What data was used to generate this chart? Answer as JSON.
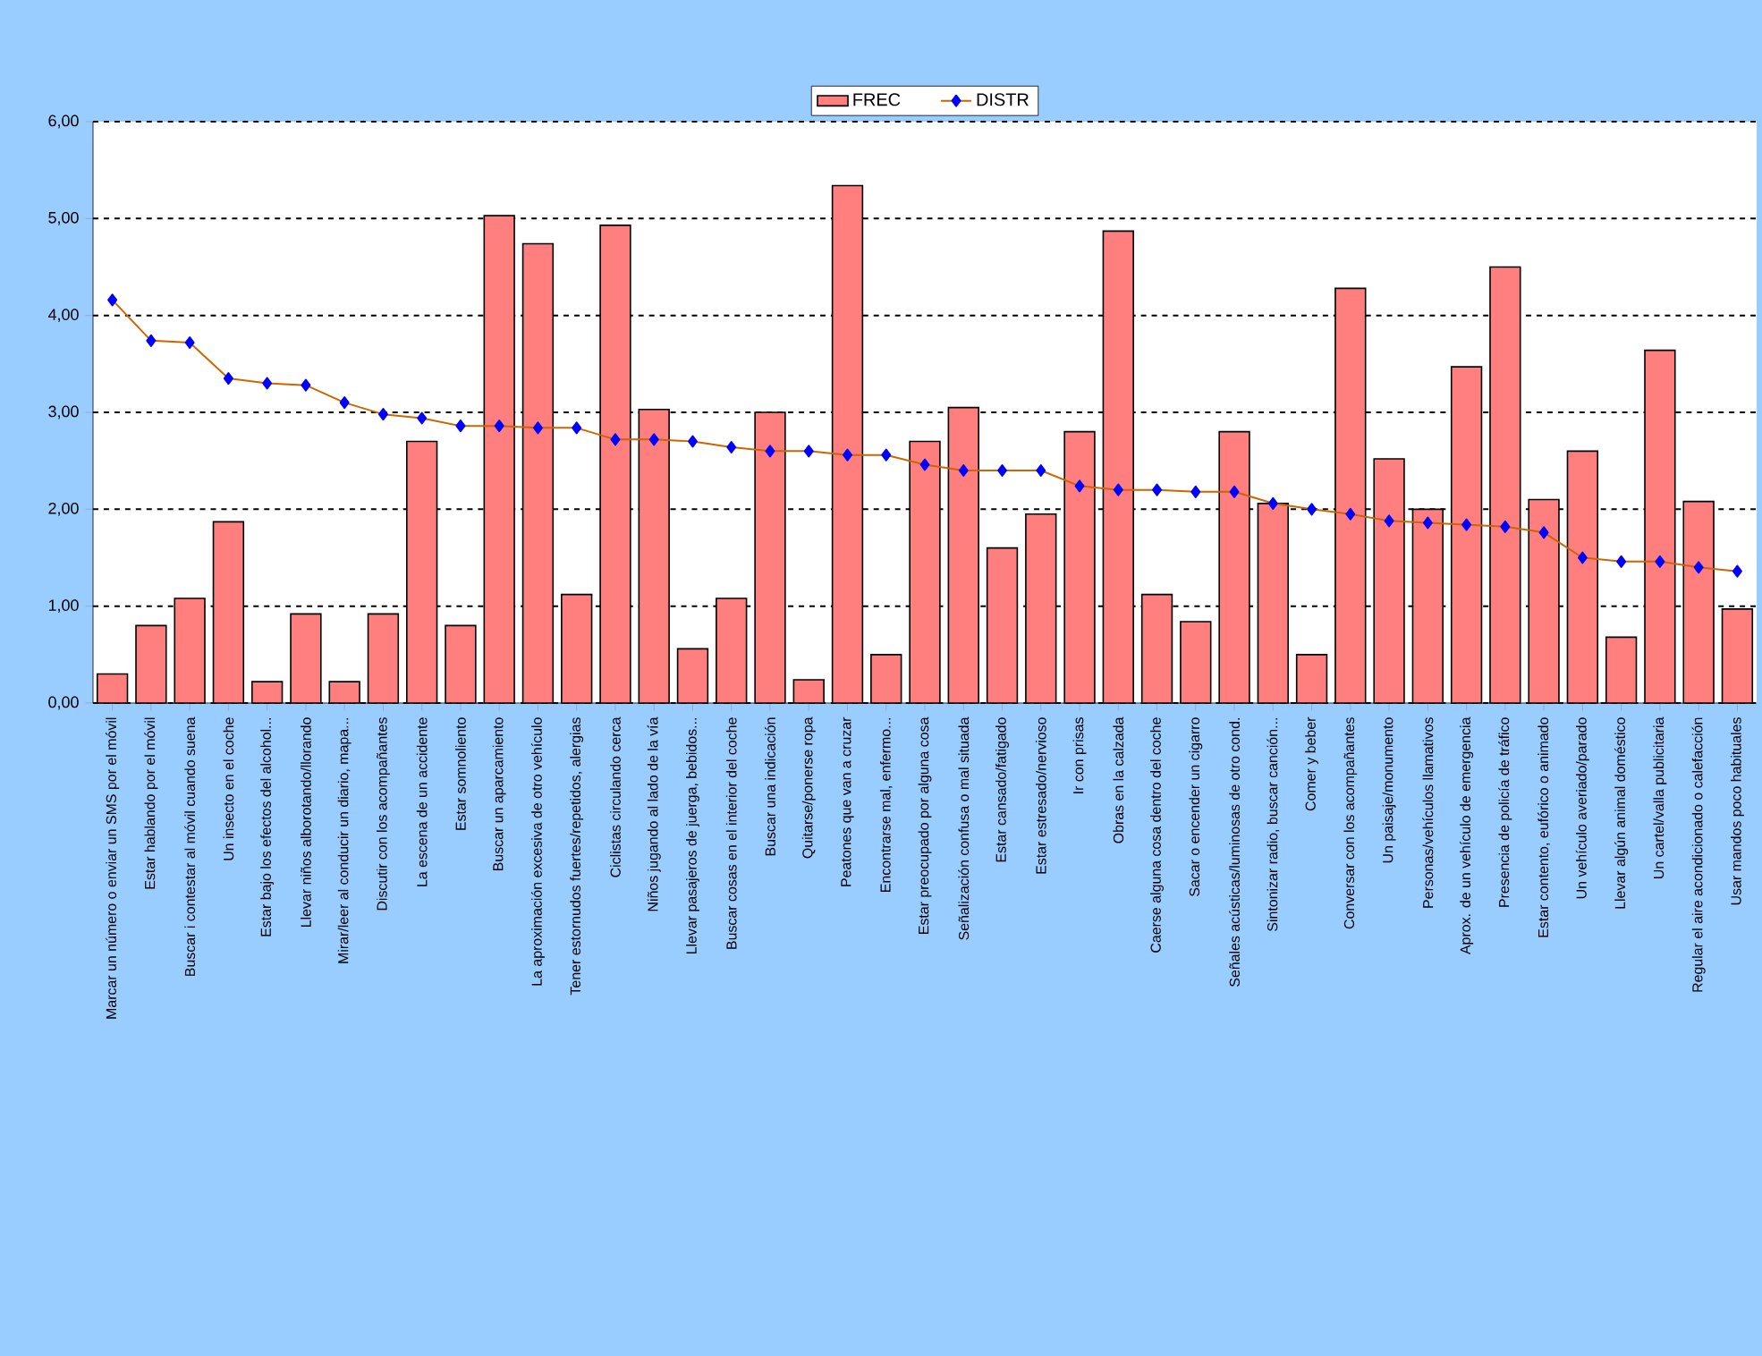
{
  "chart_data": {
    "type": "bar",
    "categories": [
      "Marcar un número o enviar un SMS por el móvil",
      "Estar hablando por el móvil",
      "Buscar i contestar al móvil cuando suena",
      "Un insecto en el coche",
      "Estar bajo los efectos del alcohol...",
      "Llevar niños alborotando/llorando",
      "Mirar/leer al conducir un diario, mapa...",
      "Discutir con los acompañantes",
      "La escena de un accidente",
      "Estar somnoliento",
      "Buscar un aparcamiento",
      "La aproximación excesiva de otro vehículo",
      "Tener estornudos fuertes/repetidos, alergias",
      "Ciclistas circulando cerca",
      "Niños jugando al lado de la vía",
      "Llevar pasajeros de juerga, bebidos...",
      "Buscar cosas en el interior del coche",
      "Buscar una indicación",
      "Quitarse/ponerse ropa",
      "Peatones que van a cruzar",
      "Encontrarse mal, enfermo...",
      "Estar preocupado por alguna cosa",
      "Señalización confusa o mal situada",
      "Estar cansado/fatigado",
      "Estar estresado/nervioso",
      "Ir con prisas",
      "Obras en la calzada",
      "Caerse alguna cosa dentro del coche",
      "Sacar o encender un cigarro",
      "Señales acústicas/luminosas de otro cond.",
      "Sintonizar radio, buscar canción...",
      "Comer y beber",
      "Conversar con los acompañantes",
      "Un paisaje/monumento",
      "Personas/vehículos llamativos",
      "Aprox. de un vehículo de emergencia",
      "Presencia de policía de tráfico",
      "Estar contento, eufórico o animado",
      "Un vehículo averiado/parado",
      "Llevar algún animal doméstico",
      "Un cartel/valla publicitaria",
      "Regular el aire acondicionado o calefacción",
      "Usar mandos poco habituales"
    ],
    "series": [
      {
        "name": "FREC",
        "color": "#ff7f7f",
        "values": [
          0.3,
          0.8,
          1.08,
          1.87,
          0.22,
          0.92,
          0.22,
          0.92,
          2.7,
          0.8,
          5.03,
          4.74,
          1.12,
          4.93,
          3.03,
          0.56,
          1.08,
          3.0,
          0.24,
          5.34,
          0.5,
          2.7,
          3.05,
          1.6,
          1.95,
          2.8,
          4.87,
          1.12,
          0.84,
          2.8,
          2.06,
          0.5,
          4.28,
          2.52,
          2.0,
          3.47,
          4.5,
          2.1,
          2.6,
          0.68,
          3.64,
          2.08,
          0.97
        ]
      },
      {
        "name": "DISTR",
        "type": "line",
        "color": "#cc6600",
        "marker": "diamond",
        "line_style": "solid",
        "values": [
          4.16,
          3.74,
          3.72,
          3.35,
          3.3,
          3.28,
          3.1,
          2.98,
          2.94,
          2.86,
          2.86,
          2.84,
          2.84,
          2.72,
          2.72,
          2.7,
          2.64,
          2.6,
          2.6,
          2.56,
          2.56,
          2.46,
          2.4,
          2.4,
          2.4,
          2.24,
          2.2,
          2.2,
          2.18,
          2.18,
          2.06,
          2.0,
          1.95,
          1.88,
          1.86,
          1.84,
          1.82,
          1.76,
          1.5,
          1.46,
          1.46,
          1.4,
          1.36
        ]
      }
    ],
    "ylim": [
      0,
      6
    ],
    "yticks": [
      {
        "value": 0,
        "label": "0,00"
      },
      {
        "value": 1,
        "label": "1,00"
      },
      {
        "value": 2,
        "label": "2,00"
      },
      {
        "value": 3,
        "label": "3,00"
      },
      {
        "value": 4,
        "label": "4,00"
      },
      {
        "value": 5,
        "label": "5,00"
      },
      {
        "value": 6,
        "label": "6,00"
      }
    ],
    "grid": "y",
    "legend": "top"
  }
}
